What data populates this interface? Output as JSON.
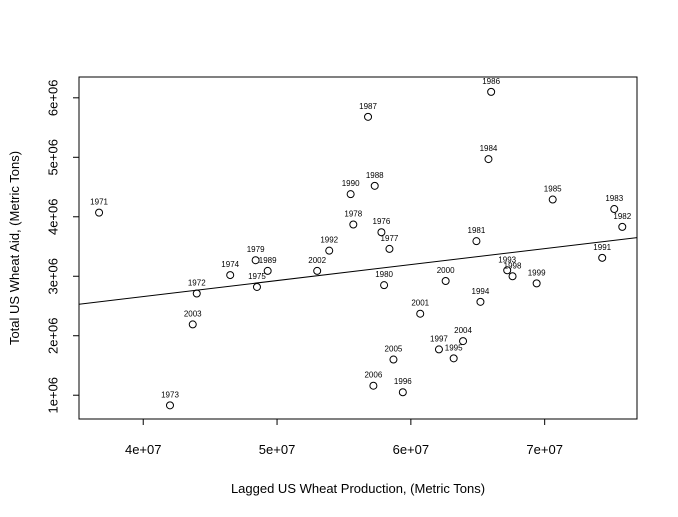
{
  "chart_data": {
    "type": "scatter",
    "title": "",
    "xlabel": "Lagged US Wheat Production, (Metric Tons)",
    "ylabel": "Total US Wheat Aid, (Metric Tons)",
    "xlim": [
      35200000,
      76900000
    ],
    "ylim": [
      600000,
      6350000
    ],
    "x_ticks": [
      {
        "value": 40000000,
        "label": "4e+07"
      },
      {
        "value": 50000000,
        "label": "5e+07"
      },
      {
        "value": 60000000,
        "label": "6e+07"
      },
      {
        "value": 70000000,
        "label": "7e+07"
      }
    ],
    "y_ticks": [
      {
        "value": 1000000,
        "label": "1e+06"
      },
      {
        "value": 2000000,
        "label": "2e+06"
      },
      {
        "value": 3000000,
        "label": "3e+06"
      },
      {
        "value": 4000000,
        "label": "4e+06"
      },
      {
        "value": 5000000,
        "label": "5e+06"
      },
      {
        "value": 6000000,
        "label": "6e+06"
      }
    ],
    "grid": false,
    "points": [
      {
        "label": "1971",
        "x": 36700000,
        "y": 4070000
      },
      {
        "label": "1972",
        "x": 44000000,
        "y": 2710000
      },
      {
        "label": "1973",
        "x": 42000000,
        "y": 830000
      },
      {
        "label": "1974",
        "x": 46500000,
        "y": 3020000
      },
      {
        "label": "1975",
        "x": 48500000,
        "y": 2820000
      },
      {
        "label": "1976",
        "x": 57800000,
        "y": 3740000
      },
      {
        "label": "1977",
        "x": 58400000,
        "y": 3460000
      },
      {
        "label": "1978",
        "x": 55700000,
        "y": 3870000
      },
      {
        "label": "1979",
        "x": 48400000,
        "y": 3270000
      },
      {
        "label": "1980",
        "x": 58000000,
        "y": 2850000
      },
      {
        "label": "1981",
        "x": 64900000,
        "y": 3590000
      },
      {
        "label": "1982",
        "x": 75800000,
        "y": 3830000
      },
      {
        "label": "1983",
        "x": 75200000,
        "y": 4130000
      },
      {
        "label": "1984",
        "x": 65800000,
        "y": 4970000
      },
      {
        "label": "1985",
        "x": 70600000,
        "y": 4290000
      },
      {
        "label": "1986",
        "x": 66000000,
        "y": 6100000
      },
      {
        "label": "1987",
        "x": 56800000,
        "y": 5680000
      },
      {
        "label": "1988",
        "x": 57300000,
        "y": 4520000
      },
      {
        "label": "1989",
        "x": 49300000,
        "y": 3090000
      },
      {
        "label": "1990",
        "x": 55500000,
        "y": 4380000
      },
      {
        "label": "1991",
        "x": 74300000,
        "y": 3310000
      },
      {
        "label": "1992",
        "x": 53900000,
        "y": 3430000
      },
      {
        "label": "1993",
        "x": 67200000,
        "y": 3100000
      },
      {
        "label": "1994",
        "x": 65200000,
        "y": 2570000
      },
      {
        "label": "1995",
        "x": 63200000,
        "y": 1620000
      },
      {
        "label": "1996",
        "x": 59400000,
        "y": 1050000
      },
      {
        "label": "1997",
        "x": 62100000,
        "y": 1770000
      },
      {
        "label": "1998",
        "x": 67600000,
        "y": 3000000
      },
      {
        "label": "1999",
        "x": 69400000,
        "y": 2880000
      },
      {
        "label": "2000",
        "x": 62600000,
        "y": 2920000
      },
      {
        "label": "2001",
        "x": 60700000,
        "y": 2370000
      },
      {
        "label": "2002",
        "x": 53000000,
        "y": 3090000
      },
      {
        "label": "2003",
        "x": 43700000,
        "y": 2190000
      },
      {
        "label": "2004",
        "x": 63900000,
        "y": 1910000
      },
      {
        "label": "2005",
        "x": 58700000,
        "y": 1600000
      },
      {
        "label": "2006",
        "x": 57200000,
        "y": 1160000
      }
    ],
    "regression_line": [
      {
        "x": 35200000,
        "y": 2530000
      },
      {
        "x": 76900000,
        "y": 3650000
      }
    ]
  }
}
